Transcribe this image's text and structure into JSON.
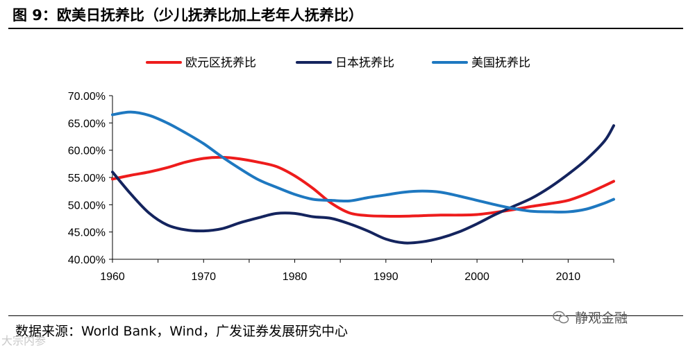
{
  "header": {
    "title": "图 9：欧美日抚养比（少儿抚养比加上老年人抚养比）"
  },
  "footer": {
    "source": "数据来源：World Bank，Wind，广发证券发展研究中心",
    "watermark_text": "静观金融",
    "watermark_corner": "大宗内参"
  },
  "chart_data": {
    "type": "line",
    "title": "欧美日抚养比（少儿抚养比加上老年人抚养比）",
    "xlabel": "",
    "ylabel": "",
    "xlim": [
      1960,
      2015
    ],
    "ylim": [
      40,
      70
    ],
    "xticks": [
      1960,
      1970,
      1980,
      1990,
      2000,
      2010
    ],
    "xtick_labels": [
      "1960",
      "1970",
      "1980",
      "1990",
      "2000",
      "2010"
    ],
    "yticks": [
      40,
      45,
      50,
      55,
      60,
      65,
      70
    ],
    "ytick_labels": [
      "40.00%",
      "45.00%",
      "50.00%",
      "55.00%",
      "60.00%",
      "65.00%",
      "70.00%"
    ],
    "legend_position": "top",
    "grid": false,
    "series": [
      {
        "name": "欧元区抚养比",
        "color": "#ee1c1c",
        "x": [
          1960,
          1962,
          1964,
          1966,
          1968,
          1970,
          1972,
          1974,
          1976,
          1978,
          1980,
          1982,
          1984,
          1986,
          1988,
          1990,
          1992,
          1994,
          1996,
          1998,
          2000,
          2002,
          2004,
          2006,
          2008,
          2010,
          2012,
          2014,
          2015
        ],
        "values": [
          54.7,
          55.4,
          56.0,
          56.8,
          57.8,
          58.5,
          58.7,
          58.4,
          57.8,
          57.0,
          55.3,
          53.0,
          50.3,
          48.5,
          48.0,
          47.9,
          47.9,
          48.0,
          48.1,
          48.1,
          48.2,
          48.6,
          49.1,
          49.7,
          50.2,
          50.8,
          52.0,
          53.5,
          54.3
        ]
      },
      {
        "name": "日本抚养比",
        "color": "#14245e",
        "x": [
          1960,
          1962,
          1964,
          1966,
          1968,
          1970,
          1972,
          1974,
          1976,
          1978,
          1980,
          1982,
          1984,
          1986,
          1988,
          1990,
          1992,
          1994,
          1996,
          1998,
          2000,
          2002,
          2004,
          2006,
          2008,
          2010,
          2012,
          2014,
          2015
        ],
        "values": [
          56.0,
          52.0,
          48.5,
          46.3,
          45.4,
          45.2,
          45.6,
          46.7,
          47.6,
          48.4,
          48.4,
          47.8,
          47.5,
          46.5,
          45.2,
          43.7,
          43.0,
          43.2,
          43.9,
          45.0,
          46.5,
          48.2,
          49.7,
          51.2,
          53.2,
          55.6,
          58.3,
          61.7,
          64.5
        ]
      },
      {
        "name": "美国抚养比",
        "color": "#1e78c0",
        "x": [
          1960,
          1962,
          1964,
          1966,
          1968,
          1970,
          1972,
          1974,
          1976,
          1978,
          1980,
          1982,
          1984,
          1986,
          1988,
          1990,
          1992,
          1994,
          1996,
          1998,
          2000,
          2002,
          2004,
          2006,
          2008,
          2010,
          2012,
          2014,
          2015
        ],
        "values": [
          66.5,
          67.0,
          66.4,
          65.0,
          63.2,
          61.2,
          58.8,
          56.6,
          54.6,
          53.2,
          51.9,
          51.0,
          50.8,
          50.7,
          51.3,
          51.8,
          52.3,
          52.5,
          52.3,
          51.6,
          50.8,
          50.0,
          49.3,
          48.8,
          48.7,
          48.7,
          49.2,
          50.3,
          51.0
        ]
      }
    ]
  }
}
